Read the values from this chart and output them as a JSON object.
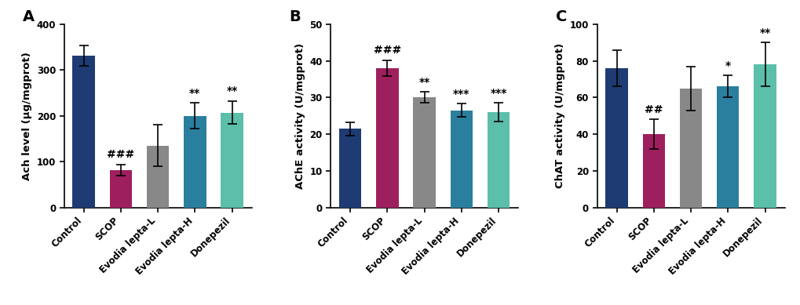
{
  "panels": [
    {
      "label": "A",
      "ylabel": "Ach level (μg/mgprot)",
      "ylim": [
        0,
        400
      ],
      "yticks": [
        0,
        100,
        200,
        300,
        400
      ],
      "categories": [
        "Control",
        "SCOP",
        "Evodia lepta-L",
        "Evodia lepta-H",
        "Donepezil"
      ],
      "values": [
        332,
        82,
        135,
        200,
        207
      ],
      "errors": [
        22,
        12,
        45,
        28,
        25
      ],
      "colors": [
        "#1f3b73",
        "#9e1f5e",
        "#888888",
        "#2a7f9e",
        "#5bbfaa"
      ],
      "sig_above": [
        "",
        "###",
        "",
        "**",
        "**"
      ]
    },
    {
      "label": "B",
      "ylabel": "AChE activity (U/mgprot)",
      "ylim": [
        0,
        50
      ],
      "yticks": [
        0,
        10,
        20,
        30,
        40,
        50
      ],
      "categories": [
        "Control",
        "SCOP",
        "Evodia lepta-L",
        "Evodia lepta-H",
        "Donepezil"
      ],
      "values": [
        21.5,
        38.0,
        30.0,
        26.5,
        26.0
      ],
      "errors": [
        1.8,
        2.2,
        1.5,
        1.8,
        2.5
      ],
      "colors": [
        "#1f3b73",
        "#9e1f5e",
        "#888888",
        "#2a7f9e",
        "#5bbfaa"
      ],
      "sig_above": [
        "",
        "###",
        "**",
        "***",
        "***"
      ]
    },
    {
      "label": "C",
      "ylabel": "ChAT activity (U/mgprot)",
      "ylim": [
        0,
        100
      ],
      "yticks": [
        0,
        20,
        40,
        60,
        80,
        100
      ],
      "categories": [
        "Control",
        "SCOP",
        "Evodia lepta-L",
        "Evodia lepta-H",
        "Donepezil"
      ],
      "values": [
        76,
        40,
        65,
        66,
        78
      ],
      "errors": [
        10,
        8,
        12,
        6,
        12
      ],
      "colors": [
        "#1f3b73",
        "#9e1f5e",
        "#888888",
        "#2a7f9e",
        "#5bbfaa"
      ],
      "sig_above": [
        "",
        "##",
        "",
        "*",
        "**"
      ]
    }
  ],
  "bar_width": 0.6,
  "tick_fontsize": 8.5,
  "label_fontsize": 9.5,
  "sig_fontsize": 10,
  "panel_label_fontsize": 14,
  "background_color": "#ffffff",
  "spine_color": "#000000"
}
